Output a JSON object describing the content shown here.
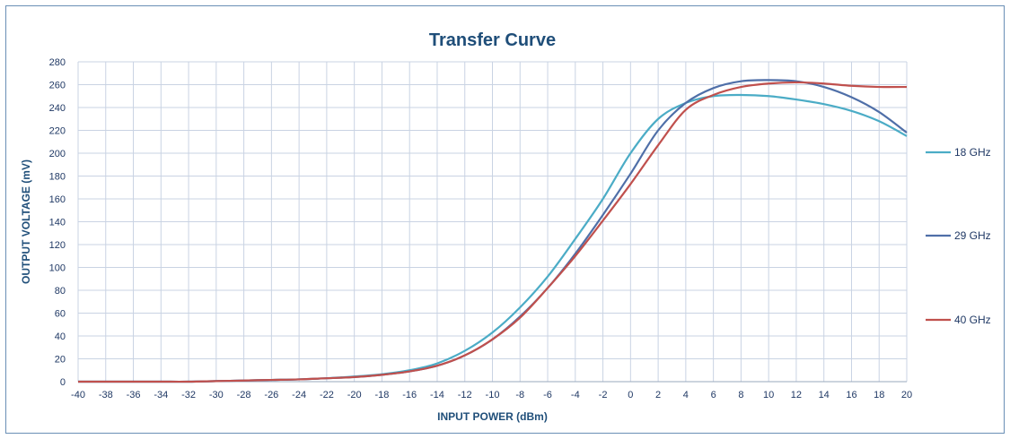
{
  "chart_data": {
    "type": "line",
    "title": "Transfer Curve",
    "xlabel": "INPUT POWER (dBm)",
    "ylabel": "OUTPUT VOLTAGE (mV)",
    "xlim": [
      -40,
      20
    ],
    "ylim": [
      0,
      280
    ],
    "x_ticks": [
      -40,
      -38,
      -36,
      -34,
      -32,
      -30,
      -28,
      -26,
      -24,
      -22,
      -20,
      -18,
      -16,
      -14,
      -12,
      -10,
      -8,
      -6,
      -4,
      -2,
      0,
      2,
      4,
      6,
      8,
      10,
      12,
      14,
      16,
      18,
      20
    ],
    "y_ticks": [
      0,
      20,
      40,
      60,
      80,
      100,
      120,
      140,
      160,
      180,
      200,
      220,
      240,
      260,
      280
    ],
    "grid": true,
    "legend_position": "right",
    "x": [
      -40,
      -38,
      -36,
      -34,
      -32,
      -30,
      -28,
      -26,
      -24,
      -22,
      -20,
      -18,
      -16,
      -14,
      -12,
      -10,
      -8,
      -6,
      -4,
      -2,
      0,
      2,
      4,
      6,
      8,
      10,
      12,
      14,
      16,
      18,
      20
    ],
    "series": [
      {
        "name": "18 GHz",
        "color": "#4bacc6",
        "values": [
          0,
          0,
          0,
          0,
          0,
          0.5,
          1,
          1.5,
          2,
          3,
          4.5,
          6.5,
          10,
          16,
          27,
          43,
          65,
          92,
          125,
          160,
          200,
          230,
          244,
          250,
          251,
          250,
          247,
          243,
          237,
          228,
          215
        ]
      },
      {
        "name": "29 GHz",
        "color": "#4f6fa8",
        "values": [
          0,
          0,
          0,
          0,
          0,
          0.5,
          1,
          1.5,
          2,
          3,
          4,
          6,
          9,
          14,
          23,
          37,
          57,
          82,
          112,
          146,
          182,
          220,
          244,
          257,
          263,
          264,
          263,
          258,
          249,
          236,
          218
        ]
      },
      {
        "name": "40 GHz",
        "color": "#c0504d",
        "values": [
          0,
          0,
          0,
          0,
          0,
          0.5,
          1,
          1.5,
          2,
          3,
          4,
          6,
          9,
          14,
          23,
          37,
          56,
          82,
          110,
          141,
          173,
          207,
          238,
          251,
          258,
          261,
          262,
          261,
          259,
          258,
          258
        ]
      }
    ]
  }
}
